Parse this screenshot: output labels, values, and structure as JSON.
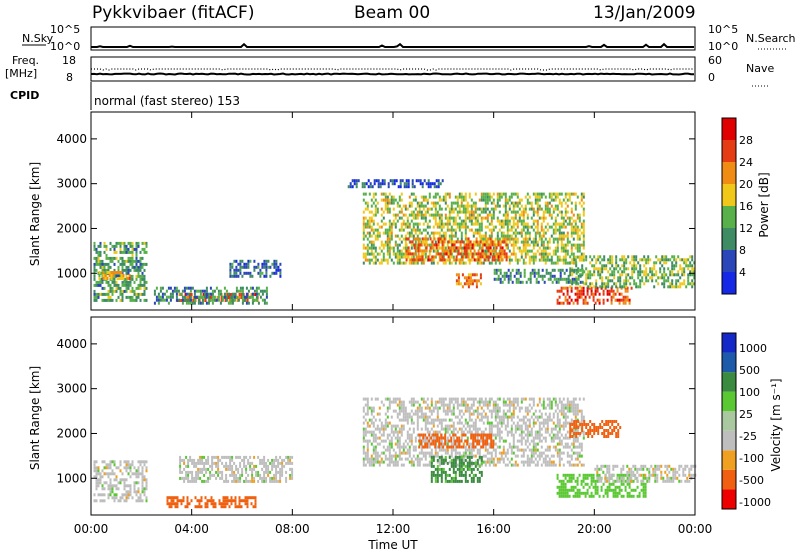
{
  "header": {
    "station": "Pykkvibaer (fitACF)",
    "beam": "Beam 00",
    "date": "13/Jan/2009"
  },
  "top_panels": {
    "nsky_label": "N.Sky",
    "nsky_ticks": [
      "10^5",
      "10^0"
    ],
    "nsearch_label": "N.Search",
    "nsearch_ticks": [
      "10^5",
      "10^0"
    ],
    "freq_label_1": "Freq.",
    "freq_label_2": "[MHz]",
    "freq_ticks": [
      "18",
      "8"
    ],
    "nave_label": "Nave",
    "nave_ticks": [
      "60",
      "0"
    ],
    "cpid_label": "CPID",
    "cpid_text": "normal (fast stereo) 153"
  },
  "colors": {
    "power_scale": [
      "#1428e6",
      "#2a46b8",
      "#3f8c64",
      "#57b04a",
      "#f0c81a",
      "#f08c14",
      "#e63c14",
      "#e10000"
    ],
    "velocity_scale": [
      "#ee0000",
      "#f06010",
      "#f0a020",
      "#bebebe",
      "#aac8a0",
      "#5ac832",
      "#3a8a40",
      "#1e5aaa",
      "#1428c8"
    ]
  },
  "chart_data": [
    {
      "type": "heatmap",
      "parameter": "Power",
      "ylabel": "Slant Range [km]",
      "yticks": [
        "4000",
        "3000",
        "2000",
        "1000"
      ],
      "ylim": [
        180,
        4600
      ],
      "xlim": [
        "00:00",
        "24:00"
      ],
      "colorbar_label": "Power [dB]",
      "colorbar_ticks": [
        "28",
        "24",
        "20",
        "16",
        "12",
        "8",
        "4"
      ],
      "colorbar_range": [
        0,
        32
      ],
      "echo_regions": [
        {
          "t": [
            0.1,
            2.2
          ],
          "range": [
            400,
            1700
          ],
          "value": 12
        },
        {
          "t": [
            0.3,
            1.6
          ],
          "range": [
            850,
            1050
          ],
          "value": 20
        },
        {
          "t": [
            3.4,
            6.6
          ],
          "range": [
            380,
            560
          ],
          "value": 26
        },
        {
          "t": [
            2.5,
            7.0
          ],
          "range": [
            300,
            700
          ],
          "value": 10
        },
        {
          "t": [
            5.5,
            7.5
          ],
          "range": [
            900,
            1300
          ],
          "value": 8
        },
        {
          "t": [
            10.8,
            19.6
          ],
          "range": [
            1200,
            2800
          ],
          "value": 16
        },
        {
          "t": [
            12.5,
            16.5
          ],
          "range": [
            1300,
            1800
          ],
          "value": 24
        },
        {
          "t": [
            10.2,
            14.0
          ],
          "range": [
            2900,
            3100
          ],
          "value": 6
        },
        {
          "t": [
            14.5,
            15.5
          ],
          "range": [
            700,
            1000
          ],
          "value": 22
        },
        {
          "t": [
            18.5,
            21.5
          ],
          "range": [
            350,
            700
          ],
          "value": 26
        },
        {
          "t": [
            19.0,
            24.0
          ],
          "range": [
            700,
            1400
          ],
          "value": 14
        },
        {
          "t": [
            16.0,
            19.5
          ],
          "range": [
            800,
            1100
          ],
          "value": 10
        }
      ]
    },
    {
      "type": "heatmap",
      "parameter": "Velocity",
      "ylabel": "Slant Range [km]",
      "yticks": [
        "4000",
        "3000",
        "2000",
        "1000"
      ],
      "ylim": [
        180,
        4600
      ],
      "xlim": [
        "00:00",
        "24:00"
      ],
      "xlabel": "Time UT",
      "xticks": [
        "00:00",
        "04:00",
        "08:00",
        "12:00",
        "16:00",
        "20:00",
        "00:00"
      ],
      "colorbar_label": "Velocity [m s⁻¹]",
      "colorbar_ticks": [
        "1000",
        "500",
        "100",
        "25",
        "-25",
        "-100",
        "-500",
        "-1000"
      ],
      "echo_regions": [
        {
          "t": [
            0.1,
            2.2
          ],
          "range": [
            500,
            1400
          ],
          "value": 0
        },
        {
          "t": [
            3.0,
            6.5
          ],
          "range": [
            350,
            600
          ],
          "value": -150
        },
        {
          "t": [
            3.5,
            8.0
          ],
          "range": [
            900,
            1500
          ],
          "value": 0
        },
        {
          "t": [
            10.8,
            19.6
          ],
          "range": [
            1300,
            2800
          ],
          "value": 0
        },
        {
          "t": [
            13.5,
            15.5
          ],
          "range": [
            900,
            1500
          ],
          "value": 120
        },
        {
          "t": [
            13.0,
            16.0
          ],
          "range": [
            1700,
            2000
          ],
          "value": -150
        },
        {
          "t": [
            18.5,
            22.0
          ],
          "range": [
            600,
            1100
          ],
          "value": 60
        },
        {
          "t": [
            20.0,
            24.0
          ],
          "range": [
            900,
            1300
          ],
          "value": 0
        },
        {
          "t": [
            19.0,
            21.0
          ],
          "range": [
            1900,
            2300
          ],
          "value": -150
        }
      ]
    }
  ]
}
